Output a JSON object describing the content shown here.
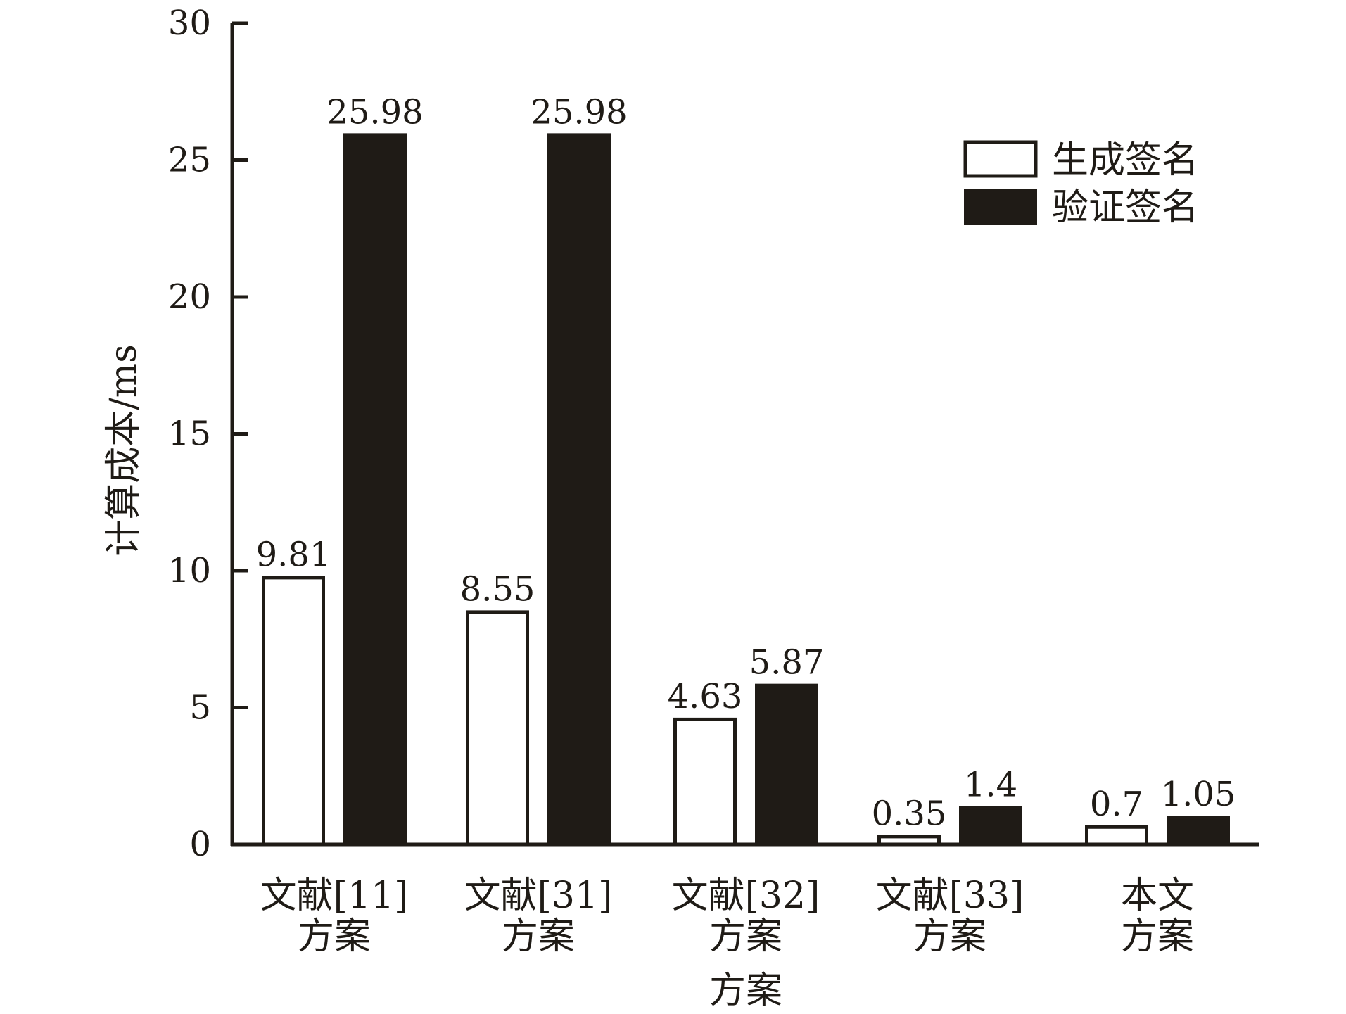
{
  "chart_data": {
    "type": "bar",
    "categories": [
      [
        "文献[11]",
        "方案"
      ],
      [
        "文献[31]",
        "方案"
      ],
      [
        "文献[32]",
        "方案"
      ],
      [
        "文献[33]",
        "方案"
      ],
      [
        "本文",
        "方案"
      ]
    ],
    "series": [
      {
        "name": "生成签名",
        "values": [
          9.81,
          8.55,
          4.63,
          0.35,
          0.7
        ],
        "labels": [
          "9.81",
          "8.55",
          "4.63",
          "0.35",
          "0.7"
        ],
        "fill": "#ffffff",
        "stroke": "#1f1b16"
      },
      {
        "name": "验证签名",
        "values": [
          25.98,
          25.98,
          5.87,
          1.4,
          1.05
        ],
        "labels": [
          "25.98",
          "25.98",
          "5.87",
          "1.4",
          "1.05"
        ],
        "fill": "#1f1b16",
        "stroke": "#1f1b16"
      }
    ],
    "xlabel": "方案",
    "ylabel": "计算成本/ms",
    "ylim": [
      0,
      30
    ],
    "yticks": [
      0,
      5,
      10,
      15,
      20,
      25,
      30
    ],
    "grid": false,
    "legend_position": "top-right",
    "colors": {
      "ink": "#1f1b16",
      "background": "#ffffff"
    }
  }
}
